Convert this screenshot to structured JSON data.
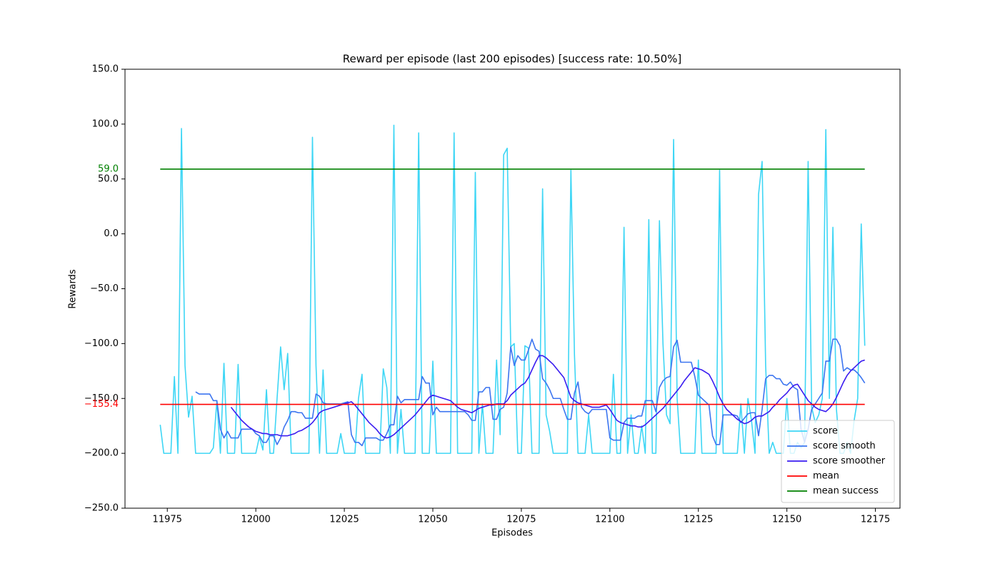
{
  "chart_data": {
    "type": "line",
    "title": "Reward per episode (last 200 episodes) [success rate: 10.50%]",
    "xlabel": "Episodes",
    "ylabel": "Rewards",
    "x": [
      11973,
      11974,
      11975,
      11976,
      11977,
      11978,
      11979,
      11980,
      11981,
      11982,
      11983,
      11984,
      11985,
      11986,
      11987,
      11988,
      11989,
      11990,
      11991,
      11992,
      11993,
      11994,
      11995,
      11996,
      11997,
      11998,
      11999,
      12000,
      12001,
      12002,
      12003,
      12004,
      12005,
      12006,
      12007,
      12008,
      12009,
      12010,
      12011,
      12012,
      12013,
      12014,
      12015,
      12016,
      12017,
      12018,
      12019,
      12020,
      12021,
      12022,
      12023,
      12024,
      12025,
      12026,
      12027,
      12028,
      12029,
      12030,
      12031,
      12032,
      12033,
      12034,
      12035,
      12036,
      12037,
      12038,
      12039,
      12040,
      12041,
      12042,
      12043,
      12044,
      12045,
      12046,
      12047,
      12048,
      12049,
      12050,
      12051,
      12052,
      12053,
      12054,
      12055,
      12056,
      12057,
      12058,
      12059,
      12060,
      12061,
      12062,
      12063,
      12064,
      12065,
      12066,
      12067,
      12068,
      12069,
      12070,
      12071,
      12072,
      12073,
      12074,
      12075,
      12076,
      12077,
      12078,
      12079,
      12080,
      12081,
      12082,
      12083,
      12084,
      12085,
      12086,
      12087,
      12088,
      12089,
      12090,
      12091,
      12092,
      12093,
      12094,
      12095,
      12096,
      12097,
      12098,
      12099,
      12100,
      12101,
      12102,
      12103,
      12104,
      12105,
      12106,
      12107,
      12108,
      12109,
      12110,
      12111,
      12112,
      12113,
      12114,
      12115,
      12116,
      12117,
      12118,
      12119,
      12120,
      12121,
      12122,
      12123,
      12124,
      12125,
      12126,
      12127,
      12128,
      12129,
      12130,
      12131,
      12132,
      12133,
      12134,
      12135,
      12136,
      12137,
      12138,
      12139,
      12140,
      12141,
      12142,
      12143,
      12144,
      12145,
      12146,
      12147,
      12148,
      12149,
      12150,
      12151,
      12152,
      12153,
      12154,
      12155,
      12156,
      12157,
      12158,
      12159,
      12160,
      12161,
      12162,
      12163,
      12164,
      12165,
      12166,
      12167,
      12168,
      12169,
      12170,
      12171,
      12172
    ],
    "series": [
      {
        "name": "score",
        "color": "#3ed6f5",
        "values": [
          -174,
          -200,
          -200,
          -200,
          -130,
          -200,
          96,
          -120,
          -167,
          -148,
          -200,
          -200,
          -200,
          -200,
          -200,
          -195,
          -152,
          -200,
          -118,
          -200,
          -200,
          -200,
          -119,
          -200,
          -200,
          -200,
          -200,
          -200,
          -185,
          -197,
          -142,
          -200,
          -200,
          -150,
          -103,
          -142,
          -109,
          -200,
          -200,
          -200,
          -200,
          -200,
          -200,
          88,
          -120,
          -200,
          -124,
          -200,
          -200,
          -200,
          -200,
          -182,
          -200,
          -200,
          -200,
          -200,
          -150,
          -128,
          -200,
          -200,
          -200,
          -200,
          -200,
          -123,
          -140,
          -200,
          99,
          -200,
          -160,
          -200,
          -200,
          -200,
          -200,
          92,
          -200,
          -200,
          -200,
          -116,
          -200,
          -200,
          -200,
          -200,
          -200,
          92,
          -200,
          -200,
          -200,
          -200,
          -200,
          56,
          -200,
          -155,
          -200,
          -200,
          -200,
          -115,
          -183,
          72,
          78,
          -103,
          -100,
          -200,
          -200,
          -102,
          -104,
          -200,
          -200,
          -200,
          41,
          -165,
          -180,
          -200,
          -200,
          -200,
          -200,
          -200,
          58,
          -110,
          -200,
          -200,
          -200,
          -165,
          -200,
          -200,
          -200,
          -200,
          -200,
          -200,
          -128,
          -200,
          -200,
          6,
          -200,
          -165,
          -200,
          -200,
          -175,
          -200,
          13,
          -200,
          -200,
          12,
          -100,
          -165,
          -173,
          86,
          -150,
          -200,
          -200,
          -200,
          -200,
          -200,
          -115,
          -200,
          -200,
          -200,
          -200,
          -200,
          58,
          -200,
          -200,
          -200,
          -200,
          -200,
          -155,
          -200,
          -150,
          -170,
          -200,
          36,
          66,
          -120,
          -200,
          -190,
          -200,
          -200,
          -200,
          -150,
          -200,
          -200,
          -190,
          -195,
          -190,
          66,
          -158,
          -172,
          -165,
          -150,
          95,
          -150,
          6,
          -160,
          -200,
          -200,
          -190,
          -200,
          -170,
          -150,
          9,
          -102
        ]
      },
      {
        "name": "score smooth",
        "color": "#3c75f0",
        "values": [
          null,
          null,
          null,
          null,
          null,
          null,
          null,
          null,
          null,
          null,
          -144,
          -146,
          -146,
          -146,
          -146,
          -152,
          -152,
          -178,
          -186,
          -180,
          -186,
          -186,
          -186,
          -178,
          -178,
          -178,
          -178,
          -182,
          -184,
          -190,
          -190,
          -184,
          -184,
          -192,
          -186,
          -176,
          -170,
          -162,
          -162,
          -163,
          -163,
          -168,
          -168,
          -168,
          -146,
          -148,
          -154,
          -155,
          -155,
          -155,
          -155,
          -155,
          -154,
          -153,
          -183,
          -190,
          -190,
          -193,
          -186,
          -186,
          -186,
          -186,
          -188,
          -188,
          -182,
          -174,
          -174,
          -148,
          -154,
          -151,
          -151,
          -151,
          -151,
          -151,
          -130,
          -136,
          -136,
          -165,
          -158,
          -162,
          -162,
          -162,
          -162,
          -162,
          -162,
          -162,
          -162,
          -165,
          -170,
          -170,
          -144,
          -144,
          -140,
          -140,
          -169,
          -169,
          -160,
          -158,
          -145,
          -103,
          -120,
          -111,
          -115,
          -115,
          -106,
          -96,
          -105,
          -107,
          -132,
          -136,
          -142,
          -150,
          -150,
          -150,
          -160,
          -169,
          -169,
          -145,
          -135,
          -158,
          -162,
          -164,
          -160,
          -160,
          -160,
          -160,
          -160,
          -186,
          -188,
          -188,
          -188,
          -172,
          -168,
          -168,
          -168,
          -166,
          -166,
          -152,
          -152,
          -152,
          -162,
          -140,
          -134,
          -131,
          -130,
          -103,
          -97,
          -117,
          -117,
          -117,
          -117,
          -130,
          -147,
          -150,
          -153,
          -156,
          -184,
          -192,
          -192,
          -165,
          -165,
          -165,
          -165,
          -166,
          -172,
          -168,
          -164,
          -163,
          -163,
          -184,
          -160,
          -132,
          -129,
          -129,
          -132,
          -132,
          -137,
          -138,
          -135,
          -140,
          -142,
          -178,
          -190,
          -178,
          -160,
          -155,
          -150,
          -145,
          -116,
          -116,
          -96,
          -96,
          -102,
          -125,
          -122,
          -124,
          -124,
          -127,
          -131,
          -136
        ]
      },
      {
        "name": "score smoother",
        "color": "#3a1cf0",
        "values": [
          null,
          null,
          null,
          null,
          null,
          null,
          null,
          null,
          null,
          null,
          null,
          null,
          null,
          null,
          null,
          null,
          null,
          null,
          null,
          null,
          -158,
          -162,
          -166,
          -170,
          -173,
          -176,
          -178,
          -180,
          -181,
          -182,
          -182,
          -183,
          -183,
          -183,
          -184,
          -184,
          -184,
          -183,
          -182,
          -180,
          -179,
          -177,
          -175,
          -172,
          -168,
          -163,
          -161,
          -160,
          -159,
          -158,
          -157,
          -156,
          -155,
          -154,
          -153,
          -156,
          -160,
          -164,
          -168,
          -172,
          -175,
          -178,
          -182,
          -185,
          -186,
          -185,
          -183,
          -180,
          -177,
          -174,
          -171,
          -168,
          -165,
          -161,
          -157,
          -153,
          -149,
          -147,
          -148,
          -149,
          -150,
          -151,
          -152,
          -155,
          -158,
          -160,
          -161,
          -162,
          -163,
          -161,
          -159,
          -158,
          -157,
          -156,
          -156,
          -155,
          -155,
          -155,
          -152,
          -147,
          -144,
          -141,
          -138,
          -136,
          -131,
          -124,
          -117,
          -111,
          -111,
          -113,
          -116,
          -119,
          -123,
          -127,
          -131,
          -140,
          -149,
          -152,
          -154,
          -155,
          -156,
          -157,
          -158,
          -158,
          -158,
          -157,
          -156,
          -160,
          -165,
          -170,
          -172,
          -173,
          -174,
          -175,
          -175,
          -176,
          -176,
          -174,
          -171,
          -168,
          -165,
          -162,
          -159,
          -155,
          -151,
          -147,
          -143,
          -139,
          -134,
          -130,
          -126,
          -122,
          -123,
          -124,
          -126,
          -128,
          -134,
          -141,
          -149,
          -155,
          -160,
          -163,
          -166,
          -169,
          -171,
          -173,
          -172,
          -170,
          -167,
          -166,
          -166,
          -164,
          -162,
          -158,
          -155,
          -151,
          -148,
          -145,
          -141,
          -138,
          -137,
          -142,
          -147,
          -152,
          -155,
          -158,
          -160,
          -161,
          -162,
          -159,
          -155,
          -149,
          -142,
          -135,
          -129,
          -125,
          -122,
          -119,
          -116,
          -115
        ]
      }
    ],
    "reference_lines": [
      {
        "name": "mean",
        "color": "#ff0000",
        "value": -155.4,
        "label": "−155.4"
      },
      {
        "name": "mean success",
        "color": "#008000",
        "value": 59,
        "label": "59.0"
      }
    ],
    "xlim": [
      11963.05,
      12181.95
    ],
    "ylim": [
      -250,
      150
    ],
    "xticks": [
      11975,
      12000,
      12025,
      12050,
      12075,
      12100,
      12125,
      12150,
      12175
    ],
    "yticks": [
      {
        "value": -250,
        "label": "−250.0"
      },
      {
        "value": -200,
        "label": "−200.0"
      },
      {
        "value": -150,
        "label": "−150.0"
      },
      {
        "value": -100,
        "label": "−100.0"
      },
      {
        "value": -50,
        "label": "−50.0"
      },
      {
        "value": 0,
        "label": "0.0"
      },
      {
        "value": 50,
        "label": "50.0"
      },
      {
        "value": 100,
        "label": "100.0"
      },
      {
        "value": 150,
        "label": "150.0"
      }
    ],
    "legend": "lower right"
  }
}
